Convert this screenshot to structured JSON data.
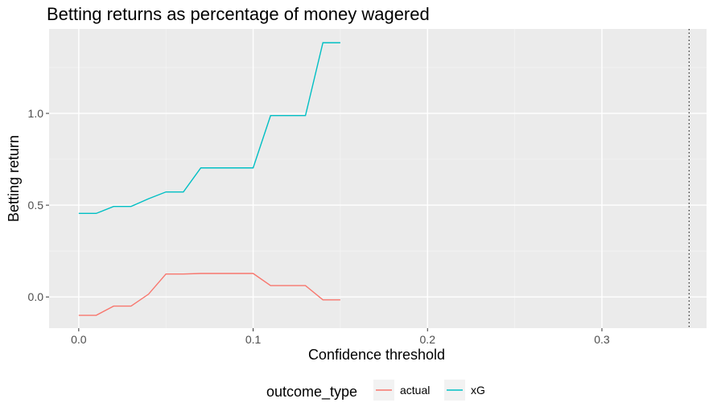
{
  "chart_data": {
    "type": "line",
    "title": "Betting returns as percentage of money wagered",
    "xlabel": "Confidence threshold",
    "ylabel": "Betting return",
    "xlim": [
      -0.017,
      0.36
    ],
    "ylim": [
      -0.17,
      1.46
    ],
    "x_ticks": [
      0.0,
      0.1,
      0.2,
      0.3
    ],
    "x_tick_labels": [
      "0.0",
      "0.1",
      "0.2",
      "0.3"
    ],
    "y_ticks": [
      0.0,
      0.5,
      1.0
    ],
    "y_tick_labels": [
      "0.0",
      "0.5",
      "1.0"
    ],
    "grid": true,
    "legend_position": "bottom",
    "legend_title": "outcome_type",
    "vline": {
      "x": 0.35,
      "style": "dotted",
      "color": "#333333"
    },
    "x": [
      0.0,
      0.01,
      0.02,
      0.03,
      0.04,
      0.05,
      0.06,
      0.07,
      0.08,
      0.09,
      0.1,
      0.11,
      0.12,
      0.13,
      0.14,
      0.15
    ],
    "series": [
      {
        "name": "actual",
        "color": "#F8766D",
        "values": [
          -0.1,
          -0.1,
          -0.05,
          -0.05,
          0.015,
          0.125,
          0.125,
          0.128,
          0.128,
          0.128,
          0.128,
          0.062,
          0.062,
          0.062,
          -0.016,
          -0.016
        ]
      },
      {
        "name": "xG",
        "color": "#00BFC4",
        "values": [
          0.455,
          0.455,
          0.493,
          0.493,
          0.535,
          0.572,
          0.572,
          0.703,
          0.703,
          0.703,
          0.703,
          0.988,
          0.988,
          0.988,
          1.385,
          1.385
        ]
      }
    ]
  }
}
